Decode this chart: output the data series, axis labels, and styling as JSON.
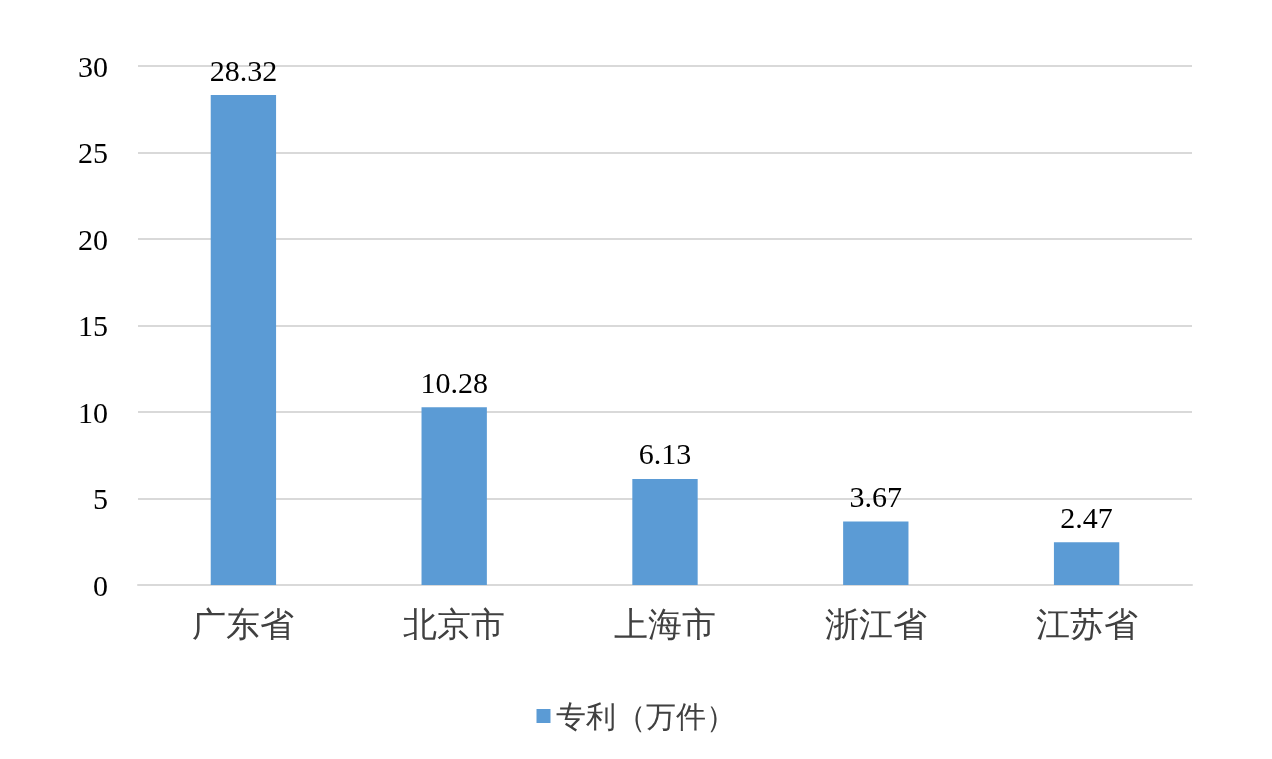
{
  "chart_data": {
    "type": "bar",
    "categories": [
      "广东省",
      "北京市",
      "上海市",
      "浙江省",
      "江苏省"
    ],
    "series": [
      {
        "name": "专利（万件）",
        "color": "#5b9bd5",
        "values": [
          28.32,
          10.28,
          6.13,
          3.67,
          2.47
        ]
      }
    ],
    "ylim": [
      0,
      30
    ],
    "yticks": [
      0,
      5,
      10,
      15,
      20,
      25,
      30
    ],
    "grid": "y",
    "legend": "bottom",
    "data_labels": true
  }
}
